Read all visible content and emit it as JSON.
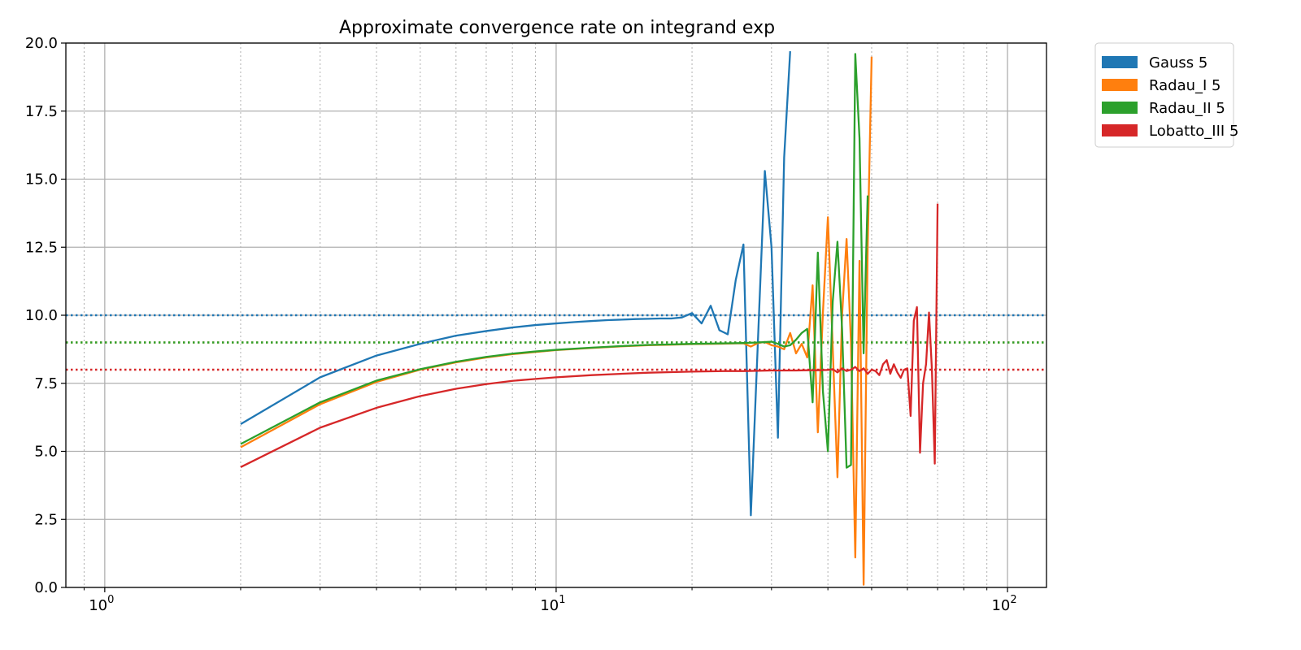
{
  "chart_data": {
    "type": "line",
    "title": "Approximate convergence rate on integrand exp",
    "xlabel": "",
    "ylabel": "",
    "x_scale": "log",
    "xlim": [
      0.82,
      122
    ],
    "ylim": [
      0,
      20
    ],
    "x_ticks": [
      {
        "value": 1,
        "base": "10",
        "exp": "0"
      },
      {
        "value": 10,
        "base": "10",
        "exp": "1"
      },
      {
        "value": 100,
        "base": "10",
        "exp": "2"
      }
    ],
    "y_ticks": [
      "0.0",
      "2.5",
      "5.0",
      "7.5",
      "10.0",
      "12.5",
      "15.0",
      "17.5",
      "20.0"
    ],
    "grid": {
      "major": true,
      "minor_x": true
    },
    "legend": {
      "placement": "outside-top-right"
    },
    "series": [
      {
        "name": "Gauss 5",
        "color": "#1f77b4",
        "reference": 10,
        "points": [
          [
            2,
            6.0
          ],
          [
            3,
            7.72
          ],
          [
            4,
            8.52
          ],
          [
            5,
            8.95
          ],
          [
            6,
            9.25
          ],
          [
            7,
            9.42
          ],
          [
            8,
            9.55
          ],
          [
            9,
            9.64
          ],
          [
            10,
            9.7
          ],
          [
            11,
            9.75
          ],
          [
            12,
            9.79
          ],
          [
            13,
            9.82
          ],
          [
            14,
            9.84
          ],
          [
            15,
            9.86
          ],
          [
            16,
            9.87
          ],
          [
            17,
            9.88
          ],
          [
            18,
            9.88
          ],
          [
            19,
            9.92
          ],
          [
            20,
            10.08
          ],
          [
            21,
            9.7
          ],
          [
            22,
            10.35
          ],
          [
            23,
            9.45
          ],
          [
            24,
            9.3
          ],
          [
            25,
            11.3
          ],
          [
            26,
            12.6
          ],
          [
            27,
            2.65
          ],
          [
            28,
            9.1
          ],
          [
            29,
            15.3
          ],
          [
            30,
            12.5
          ],
          [
            31,
            5.5
          ],
          [
            32,
            15.8
          ],
          [
            33,
            19.7
          ]
        ]
      },
      {
        "name": "Radau_I 5",
        "color": "#ff7f0e",
        "reference": 9,
        "points": [
          [
            2,
            5.15
          ],
          [
            3,
            6.73
          ],
          [
            4,
            7.55
          ],
          [
            5,
            8.0
          ],
          [
            6,
            8.27
          ],
          [
            7,
            8.45
          ],
          [
            8,
            8.57
          ],
          [
            9,
            8.65
          ],
          [
            10,
            8.72
          ],
          [
            12,
            8.8
          ],
          [
            14,
            8.86
          ],
          [
            16,
            8.9
          ],
          [
            18,
            8.92
          ],
          [
            20,
            8.94
          ],
          [
            22,
            8.95
          ],
          [
            24,
            8.96
          ],
          [
            26,
            8.97
          ],
          [
            27,
            8.85
          ],
          [
            28,
            8.98
          ],
          [
            29,
            9.02
          ],
          [
            30,
            8.9
          ],
          [
            31,
            8.85
          ],
          [
            32,
            8.75
          ],
          [
            33,
            9.35
          ],
          [
            34,
            8.6
          ],
          [
            35,
            8.95
          ],
          [
            36,
            8.45
          ],
          [
            37,
            11.1
          ],
          [
            38,
            5.7
          ],
          [
            39,
            10.1
          ],
          [
            40,
            13.6
          ],
          [
            41,
            8.8
          ],
          [
            42,
            4.05
          ],
          [
            43,
            10.0
          ],
          [
            44,
            12.8
          ],
          [
            45,
            9.0
          ],
          [
            46,
            1.1
          ],
          [
            47,
            12.0
          ],
          [
            48,
            0.1
          ],
          [
            49,
            12.5
          ],
          [
            50,
            19.5
          ]
        ]
      },
      {
        "name": "Radau_II 5",
        "color": "#2ca02c",
        "reference": 9,
        "points": [
          [
            2,
            5.27
          ],
          [
            3,
            6.8
          ],
          [
            4,
            7.6
          ],
          [
            5,
            8.02
          ],
          [
            6,
            8.29
          ],
          [
            7,
            8.47
          ],
          [
            8,
            8.59
          ],
          [
            9,
            8.67
          ],
          [
            10,
            8.73
          ],
          [
            12,
            8.81
          ],
          [
            14,
            8.87
          ],
          [
            16,
            8.91
          ],
          [
            18,
            8.93
          ],
          [
            20,
            8.95
          ],
          [
            22,
            8.96
          ],
          [
            24,
            8.97
          ],
          [
            26,
            8.98
          ],
          [
            28,
            9.0
          ],
          [
            30,
            9.03
          ],
          [
            31,
            8.95
          ],
          [
            32,
            8.85
          ],
          [
            33,
            8.9
          ],
          [
            34,
            9.1
          ],
          [
            35,
            9.35
          ],
          [
            36,
            9.5
          ],
          [
            37,
            6.8
          ],
          [
            38,
            12.3
          ],
          [
            39,
            7.2
          ],
          [
            40,
            5.0
          ],
          [
            41,
            10.5
          ],
          [
            42,
            12.7
          ],
          [
            43,
            9.5
          ],
          [
            44,
            4.4
          ],
          [
            45,
            4.5
          ],
          [
            46,
            19.6
          ],
          [
            47,
            16.5
          ],
          [
            48,
            8.6
          ],
          [
            49,
            14.4
          ]
        ]
      },
      {
        "name": "Lobatto_III 5",
        "color": "#d62728",
        "reference": 8,
        "points": [
          [
            2,
            4.42
          ],
          [
            3,
            5.87
          ],
          [
            4,
            6.6
          ],
          [
            5,
            7.03
          ],
          [
            6,
            7.3
          ],
          [
            7,
            7.47
          ],
          [
            8,
            7.59
          ],
          [
            9,
            7.66
          ],
          [
            10,
            7.72
          ],
          [
            12,
            7.8
          ],
          [
            14,
            7.85
          ],
          [
            16,
            7.89
          ],
          [
            18,
            7.91
          ],
          [
            20,
            7.93
          ],
          [
            22,
            7.94
          ],
          [
            24,
            7.95
          ],
          [
            26,
            7.95
          ],
          [
            28,
            7.96
          ],
          [
            30,
            7.97
          ],
          [
            32,
            7.97
          ],
          [
            34,
            7.97
          ],
          [
            36,
            7.98
          ],
          [
            38,
            7.98
          ],
          [
            40,
            7.99
          ],
          [
            41,
            8.02
          ],
          [
            42,
            7.9
          ],
          [
            43,
            8.05
          ],
          [
            44,
            7.95
          ],
          [
            45,
            8.0
          ],
          [
            46,
            8.1
          ],
          [
            47,
            7.95
          ],
          [
            48,
            8.05
          ],
          [
            49,
            7.85
          ],
          [
            50,
            8.0
          ],
          [
            51,
            7.95
          ],
          [
            52,
            7.8
          ],
          [
            53,
            8.2
          ],
          [
            54,
            8.35
          ],
          [
            55,
            7.85
          ],
          [
            56,
            8.2
          ],
          [
            57,
            7.9
          ],
          [
            58,
            7.7
          ],
          [
            59,
            8.0
          ],
          [
            60,
            8.05
          ],
          [
            61,
            6.3
          ],
          [
            62,
            9.8
          ],
          [
            63,
            10.3
          ],
          [
            64,
            4.95
          ],
          [
            65,
            7.5
          ],
          [
            66,
            8.2
          ],
          [
            67,
            10.1
          ],
          [
            68,
            8.0
          ],
          [
            69,
            4.55
          ],
          [
            70,
            14.1
          ]
        ]
      }
    ]
  }
}
